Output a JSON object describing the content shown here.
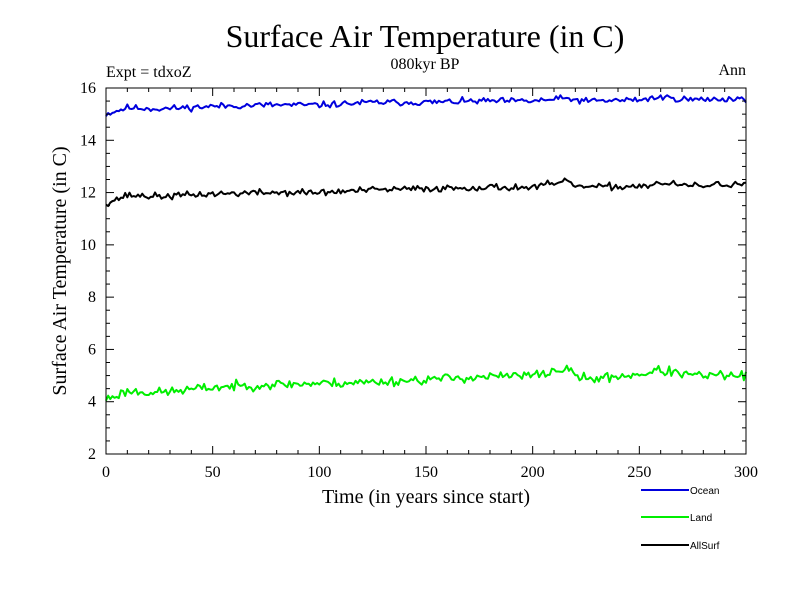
{
  "chart_data": {
    "type": "line",
    "title": "Surface Air Temperature (in C)",
    "subtitle": "080kyr BP",
    "left_annotation": "Expt = tdxoZ",
    "right_annotation": "Ann",
    "xlabel": "Time (in years since start)",
    "ylabel": "Surface Air Temperature (in C)",
    "xlim": [
      0,
      300
    ],
    "ylim": [
      2,
      16
    ],
    "x_ticks": [
      0,
      50,
      100,
      150,
      200,
      250,
      300
    ],
    "x_tick_labels": [
      "0",
      "50",
      "100",
      "150",
      "200",
      "250",
      "300"
    ],
    "y_ticks": [
      2,
      4,
      6,
      8,
      10,
      12,
      14,
      16
    ],
    "y_tick_labels": [
      "2",
      "4",
      "6",
      "8",
      "10",
      "12",
      "14",
      "16"
    ],
    "grid": false,
    "legend_placement": "below-right",
    "series": [
      {
        "name": "Ocean",
        "color": "#0000dd",
        "anchors_x": [
          0,
          10,
          25,
          50,
          75,
          100,
          125,
          150,
          175,
          200,
          215,
          225,
          250,
          260,
          275,
          300
        ],
        "anchors_y": [
          15.0,
          15.25,
          15.2,
          15.3,
          15.35,
          15.35,
          15.45,
          15.45,
          15.5,
          15.5,
          15.6,
          15.5,
          15.55,
          15.65,
          15.55,
          15.6
        ],
        "noise": 0.12,
        "seed": 11
      },
      {
        "name": "Land",
        "color": "#00ee00",
        "anchors_x": [
          0,
          10,
          25,
          50,
          75,
          100,
          125,
          150,
          175,
          200,
          215,
          225,
          250,
          260,
          275,
          300
        ],
        "anchors_y": [
          4.1,
          4.4,
          4.35,
          4.55,
          4.65,
          4.7,
          4.75,
          4.85,
          4.95,
          5.0,
          5.25,
          4.85,
          5.05,
          5.2,
          5.0,
          5.0
        ],
        "noise": 0.18,
        "seed": 23
      },
      {
        "name": "AllSurf",
        "color": "#000000",
        "anchors_x": [
          0,
          10,
          25,
          50,
          75,
          100,
          125,
          150,
          175,
          200,
          215,
          225,
          250,
          260,
          275,
          300
        ],
        "anchors_y": [
          11.6,
          11.9,
          11.85,
          11.95,
          12.0,
          12.0,
          12.1,
          12.15,
          12.2,
          12.2,
          12.4,
          12.2,
          12.25,
          12.35,
          12.25,
          12.35
        ],
        "noise": 0.13,
        "seed": 37
      }
    ]
  }
}
